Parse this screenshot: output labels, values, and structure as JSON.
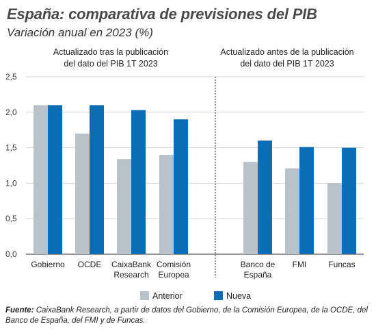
{
  "title": "España: comparativa de previsiones del PIB",
  "subtitle": "Variación anual en 2023 (%)",
  "footnote": {
    "label": "Fuente:",
    "text": "CaixaBank Research, a partir de datos del Gobierno, de la Comisión Europea, de la OCDE, del Banco de España, del FMI y de Funcas."
  },
  "chart_data": {
    "type": "bar",
    "groups": [
      {
        "label_lines": [
          "Actualizado tras la publicación",
          "del dato del PIB 1T 2023"
        ]
      },
      {
        "label_lines": [
          "Actualizado antes de la publicación",
          "del dato del PIB 1T 2023"
        ]
      }
    ],
    "categories": [
      "Gobierno",
      "OCDE",
      "CaixaBank Research",
      "Comisión Europea",
      "Banco de España",
      "FMI",
      "Funcas"
    ],
    "category_lines": [
      [
        "Gobierno"
      ],
      [
        "OCDE"
      ],
      [
        "CaixaBank",
        "Research"
      ],
      [
        "Comisión",
        "Europea"
      ],
      [
        "Banco de",
        "España"
      ],
      [
        "FMI"
      ],
      [
        "Funcas"
      ]
    ],
    "series": [
      {
        "name": "Anterior",
        "color": "#b9c2c9",
        "values": [
          2.1,
          1.7,
          1.34,
          1.4,
          1.3,
          1.21,
          1.0
        ]
      },
      {
        "name": "Nueva",
        "color": "#0b6db3",
        "values": [
          2.1,
          2.1,
          2.03,
          1.9,
          1.6,
          1.51,
          1.5
        ]
      }
    ],
    "ylim": [
      0,
      2.5
    ],
    "yticks": [
      "0,0",
      "0,5",
      "1,0",
      "1,5",
      "2,0",
      "2,5"
    ],
    "grid": true,
    "legend": "bottom-center"
  }
}
